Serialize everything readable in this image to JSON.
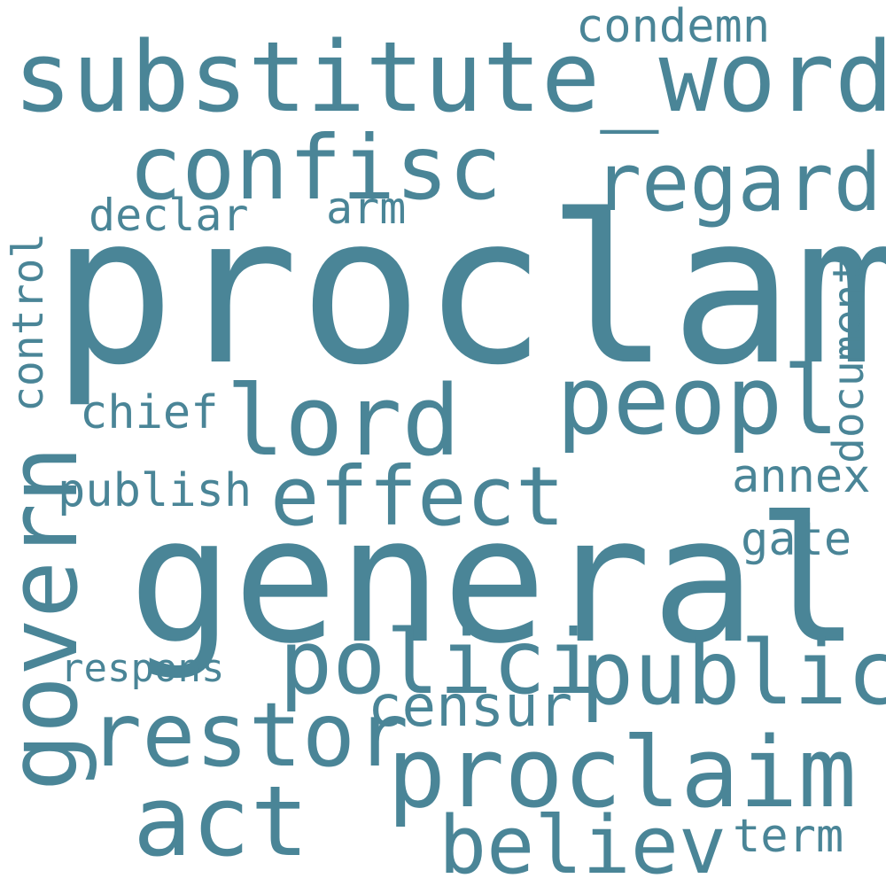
{
  "cloud": {
    "text_color": "#4a8597",
    "background_color": "#ffffff",
    "words": {
      "proclam": "proclam",
      "general": "general",
      "substitute_word": "substitute_word",
      "confisc": "confisc",
      "regard": "regard",
      "condemn": "condemn",
      "declar": "declar",
      "arm": "arm",
      "lord": "lord",
      "peopl": "peopl",
      "chief": "chief",
      "effect": "effect",
      "publish": "publish",
      "annex": "annex",
      "gate": "gate",
      "polici": "polici",
      "public": "public",
      "respons": "respons",
      "censur": "censur",
      "restor": "restor",
      "proclaim": "proclaim",
      "act": "act",
      "believ": "believ",
      "term": "term",
      "govern": "govern",
      "control": "control",
      "document": "document"
    }
  }
}
